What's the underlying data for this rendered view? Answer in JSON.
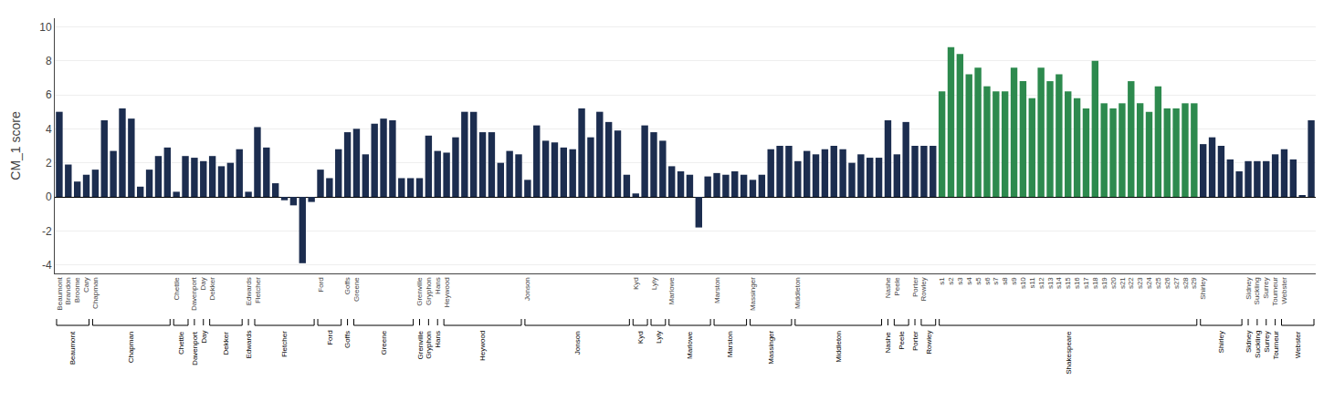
{
  "chart_data": {
    "type": "bar",
    "ylabel": "CM_1 score",
    "categories": [
      "Beaumont",
      "Brandon",
      "Broome",
      "Cary",
      "Chapman",
      null,
      null,
      null,
      null,
      null,
      null,
      null,
      null,
      "Chettle",
      null,
      "Davenport",
      "Day",
      "Dekker",
      null,
      null,
      null,
      "Edwards",
      "Fletcher",
      null,
      null,
      null,
      null,
      null,
      null,
      "Ford",
      null,
      null,
      "Goffs",
      "Greene",
      null,
      null,
      null,
      null,
      null,
      null,
      "Grenville",
      "Gryphon",
      "Hans",
      "Heywood",
      null,
      null,
      null,
      null,
      null,
      null,
      null,
      null,
      "Jonson",
      null,
      null,
      null,
      null,
      null,
      null,
      null,
      null,
      null,
      null,
      null,
      "Kyd",
      null,
      "Lyly",
      null,
      "Marlowe",
      null,
      null,
      null,
      null,
      "Marston",
      null,
      null,
      null,
      "Massinger",
      null,
      null,
      null,
      null,
      "Middleton",
      null,
      null,
      null,
      null,
      null,
      null,
      null,
      null,
      null,
      "Nashe",
      "Peele",
      null,
      "Porter",
      "Rowley",
      null,
      "s1",
      "s2",
      "s3",
      "s4",
      "s5",
      "s6",
      "s7",
      "s8",
      "s9",
      "s10",
      "s11",
      "s12",
      "s13",
      "s14",
      "s15",
      "s16",
      "s17",
      "s18",
      "s19",
      "s20",
      "s21",
      "s22",
      "s23",
      "s24",
      "s25",
      "s26",
      "s27",
      "s28",
      "s29",
      "Shirley",
      null,
      null,
      null,
      null,
      "Sidney",
      "Suckling",
      "Surrey",
      "Tourneur",
      "Webster",
      null,
      null,
      null
    ],
    "values": [
      5.0,
      1.9,
      0.9,
      1.3,
      1.6,
      4.5,
      2.7,
      5.2,
      4.6,
      0.6,
      1.6,
      2.4,
      2.9,
      0.3,
      2.4,
      2.3,
      2.1,
      2.4,
      1.8,
      2.0,
      2.8,
      0.3,
      4.1,
      2.9,
      0.8,
      -0.2,
      -0.5,
      -3.9,
      -0.3,
      1.6,
      1.1,
      2.8,
      3.8,
      4.0,
      2.5,
      4.3,
      4.6,
      4.5,
      1.1,
      1.1,
      1.1,
      3.6,
      2.7,
      2.6,
      3.5,
      5.0,
      5.0,
      3.8,
      3.8,
      2.0,
      2.7,
      2.5,
      1.0,
      4.2,
      3.3,
      3.2,
      2.9,
      2.8,
      5.2,
      3.5,
      5.0,
      4.4,
      3.9,
      1.3,
      0.2,
      4.2,
      3.8,
      3.3,
      1.8,
      1.5,
      1.3,
      -1.8,
      1.2,
      1.4,
      1.3,
      1.5,
      1.3,
      1.0,
      1.3,
      2.8,
      3.0,
      3.0,
      2.1,
      2.7,
      2.5,
      2.8,
      3.0,
      2.8,
      2.0,
      2.5,
      2.3,
      2.3,
      4.5,
      2.5,
      4.4,
      3.0,
      3.0,
      3.0,
      6.2,
      8.8,
      8.4,
      7.2,
      7.6,
      6.5,
      6.2,
      6.2,
      7.6,
      6.8,
      5.8,
      7.6,
      6.8,
      7.2,
      6.2,
      5.8,
      5.2,
      8.0,
      5.5,
      5.2,
      5.5,
      6.8,
      5.5,
      5.0,
      6.5,
      5.2,
      5.2,
      5.5,
      5.5,
      3.1,
      3.5,
      3.0,
      2.2,
      1.5,
      2.1,
      2.1,
      2.1,
      2.5,
      2.8,
      2.2,
      0.1,
      4.5
    ],
    "colors": [
      "#1c2d4f",
      "#1c2d4f",
      "#1c2d4f",
      "#1c2d4f",
      "#1c2d4f",
      "#1c2d4f",
      "#1c2d4f",
      "#1c2d4f",
      "#1c2d4f",
      "#1c2d4f",
      "#1c2d4f",
      "#1c2d4f",
      "#1c2d4f",
      "#1c2d4f",
      "#1c2d4f",
      "#1c2d4f",
      "#1c2d4f",
      "#1c2d4f",
      "#1c2d4f",
      "#1c2d4f",
      "#1c2d4f",
      "#1c2d4f",
      "#1c2d4f",
      "#1c2d4f",
      "#1c2d4f",
      "#1c2d4f",
      "#1c2d4f",
      "#1c2d4f",
      "#1c2d4f",
      "#1c2d4f",
      "#1c2d4f",
      "#1c2d4f",
      "#1c2d4f",
      "#1c2d4f",
      "#1c2d4f",
      "#1c2d4f",
      "#1c2d4f",
      "#1c2d4f",
      "#1c2d4f",
      "#1c2d4f",
      "#1c2d4f",
      "#1c2d4f",
      "#1c2d4f",
      "#1c2d4f",
      "#1c2d4f",
      "#1c2d4f",
      "#1c2d4f",
      "#1c2d4f",
      "#1c2d4f",
      "#1c2d4f",
      "#1c2d4f",
      "#1c2d4f",
      "#1c2d4f",
      "#1c2d4f",
      "#1c2d4f",
      "#1c2d4f",
      "#1c2d4f",
      "#1c2d4f",
      "#1c2d4f",
      "#1c2d4f",
      "#1c2d4f",
      "#1c2d4f",
      "#1c2d4f",
      "#1c2d4f",
      "#1c2d4f",
      "#1c2d4f",
      "#1c2d4f",
      "#1c2d4f",
      "#1c2d4f",
      "#1c2d4f",
      "#1c2d4f",
      "#1c2d4f",
      "#1c2d4f",
      "#1c2d4f",
      "#1c2d4f",
      "#1c2d4f",
      "#1c2d4f",
      "#1c2d4f",
      "#1c2d4f",
      "#1c2d4f",
      "#1c2d4f",
      "#1c2d4f",
      "#1c2d4f",
      "#1c2d4f",
      "#1c2d4f",
      "#1c2d4f",
      "#1c2d4f",
      "#1c2d4f",
      "#1c2d4f",
      "#1c2d4f",
      "#1c2d4f",
      "#1c2d4f",
      "#1c2d4f",
      "#1c2d4f",
      "#1c2d4f",
      "#1c2d4f",
      "#1c2d4f",
      "#1c2d4f",
      "#2d8a4e",
      "#2d8a4e",
      "#2d8a4e",
      "#2d8a4e",
      "#2d8a4e",
      "#2d8a4e",
      "#2d8a4e",
      "#2d8a4e",
      "#2d8a4e",
      "#2d8a4e",
      "#2d8a4e",
      "#2d8a4e",
      "#2d8a4e",
      "#2d8a4e",
      "#2d8a4e",
      "#2d8a4e",
      "#2d8a4e",
      "#2d8a4e",
      "#2d8a4e",
      "#2d8a4e",
      "#2d8a4e",
      "#2d8a4e",
      "#2d8a4e",
      "#2d8a4e",
      "#2d8a4e",
      "#2d8a4e",
      "#2d8a4e",
      "#2d8a4e",
      "#2d8a4e",
      "#1c2d4f",
      "#1c2d4f",
      "#1c2d4f",
      "#1c2d4f",
      "#1c2d4f",
      "#1c2d4f",
      "#1c2d4f",
      "#1c2d4f",
      "#1c2d4f",
      "#1c2d4f",
      "#1c2d4f",
      "#1c2d4f",
      "#1c2d4f"
    ],
    "groups": [
      {
        "name": "Beaumont",
        "count": 4
      },
      {
        "name": "Chapman",
        "count": 9
      },
      {
        "name": "Chettle",
        "count": 2
      },
      {
        "name": "Davenport",
        "count": 1
      },
      {
        "name": "Day",
        "count": 1
      },
      {
        "name": "Dekker",
        "count": 4
      },
      {
        "name": "Edwards",
        "count": 1
      },
      {
        "name": "Fletcher",
        "count": 7
      },
      {
        "name": "Ford",
        "count": 3
      },
      {
        "name": "Goffs",
        "count": 1
      },
      {
        "name": "Greene",
        "count": 7
      },
      {
        "name": "Grenville",
        "count": 1
      },
      {
        "name": "Gryphon",
        "count": 1
      },
      {
        "name": "Hans",
        "count": 1
      },
      {
        "name": "Heywood",
        "count": 9
      },
      {
        "name": "Jonson",
        "count": 12
      },
      {
        "name": "Kyd",
        "count": 2
      },
      {
        "name": "Lyly",
        "count": 2
      },
      {
        "name": "Marlowe",
        "count": 5
      },
      {
        "name": "Marston",
        "count": 4
      },
      {
        "name": "Massinger",
        "count": 5
      },
      {
        "name": "Middleton",
        "count": 10
      },
      {
        "name": "Nashe",
        "count": 1
      },
      {
        "name": "Peele",
        "count": 2
      },
      {
        "name": "Porter",
        "count": 1
      },
      {
        "name": "Rowley",
        "count": 2
      },
      {
        "name": "Shakespeare",
        "count": 29
      },
      {
        "name": "Shirley",
        "count": 5
      },
      {
        "name": "Sidney",
        "count": 1
      },
      {
        "name": "Suckling",
        "count": 1
      },
      {
        "name": "Surrey",
        "count": 1
      },
      {
        "name": "Tourneur",
        "count": 1
      },
      {
        "name": "Webster",
        "count": 4
      }
    ],
    "ylim": [
      -4.5,
      10.5
    ],
    "yticks": [
      -4,
      -2,
      0,
      2,
      4,
      6,
      8,
      10
    ],
    "grid": true
  }
}
